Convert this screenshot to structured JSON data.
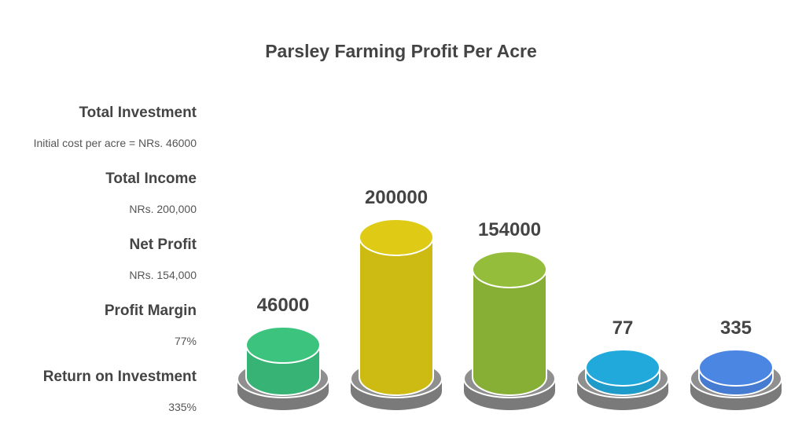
{
  "chart_data": {
    "type": "bar",
    "title": "Parsley Farming Profit Per Acre",
    "categories": [
      "Total Investment",
      "Total Income",
      "Net Profit",
      "Profit Margin",
      "Return on Investment"
    ],
    "descriptions": [
      "Initial cost per acre = NRs. 46000",
      "NRs. 200,000",
      "NRs. 154,000",
      "77%",
      "335%"
    ],
    "values": [
      46000,
      200000,
      154000,
      77,
      335
    ],
    "value_labels": [
      "46000",
      "200000",
      "154000",
      "77",
      "335"
    ],
    "colors": [
      "#3cc47f",
      "#dfcb16",
      "#93bd3a",
      "#22a9db",
      "#4b86e3"
    ],
    "base_color": "#8f8f8f",
    "legend_position": "left",
    "grid": false
  }
}
